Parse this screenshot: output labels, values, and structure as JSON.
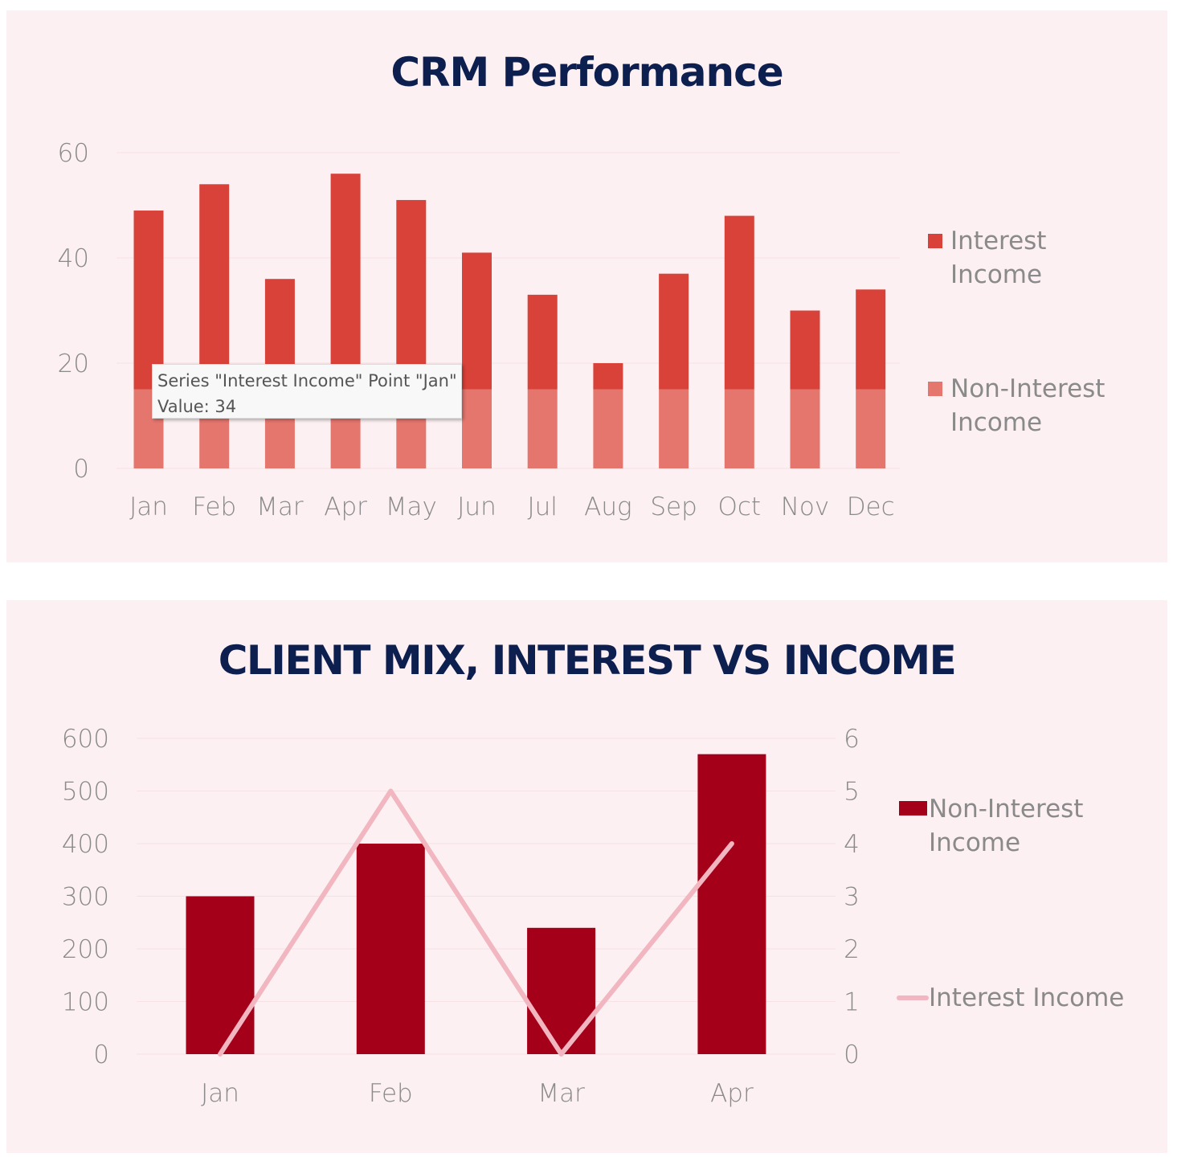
{
  "chart_data": [
    {
      "type": "bar",
      "stacked": true,
      "title": "CRM Performance",
      "categories": [
        "Jan",
        "Feb",
        "Mar",
        "Apr",
        "May",
        "Jun",
        "Jul",
        "Aug",
        "Sep",
        "Oct",
        "Nov",
        "Dec"
      ],
      "series": [
        {
          "name": "Non-Interest Income",
          "values": [
            15,
            15,
            15,
            15,
            15,
            15,
            15,
            15,
            15,
            15,
            15,
            15
          ],
          "color": "#e5766e"
        },
        {
          "name": "Interest Income",
          "values": [
            34,
            39,
            21,
            41,
            36,
            26,
            18,
            5,
            22,
            33,
            15,
            19
          ],
          "color": "#d94239"
        }
      ],
      "ylim": [
        0,
        60
      ],
      "yticks": [
        "0",
        "20",
        "40",
        "60"
      ],
      "legend_placement": "right",
      "legend": [
        {
          "line1": "Interest",
          "line2": "Income",
          "color": "#d94239"
        },
        {
          "line1": "Non-Interest",
          "line2": "Income",
          "color": "#e5766e"
        }
      ],
      "tooltip": {
        "line1": "Series \"Interest Income\" Point \"Jan\"",
        "line2": "Value: 34"
      }
    },
    {
      "type": "bar",
      "combo": "bar+line",
      "title": "CLIENT MIX, INTEREST VS INCOME",
      "categories": [
        "Jan",
        "Feb",
        "Mar",
        "Apr"
      ],
      "series": [
        {
          "name": "Non-Interest Income",
          "type": "bar",
          "axis": "left",
          "values": [
            300,
            400,
            240,
            570
          ],
          "color": "#a50019"
        },
        {
          "name": "Interest Income",
          "type": "line",
          "axis": "right",
          "values": [
            0,
            5,
            0,
            4
          ],
          "color": "#f2b6c1"
        }
      ],
      "ylim_left": [
        0,
        600
      ],
      "yticks_left": [
        "0",
        "100",
        "200",
        "300",
        "400",
        "500",
        "600"
      ],
      "ylim_right": [
        0,
        6
      ],
      "yticks_right": [
        "0",
        "1",
        "2",
        "3",
        "4",
        "5",
        "6"
      ],
      "legend_placement": "right",
      "legend": [
        {
          "line1": "Non-Interest",
          "line2": "Income",
          "color": "#a50019"
        },
        {
          "line1": "Interest Income",
          "line2": "",
          "color": "#f2b6c1"
        }
      ]
    }
  ]
}
